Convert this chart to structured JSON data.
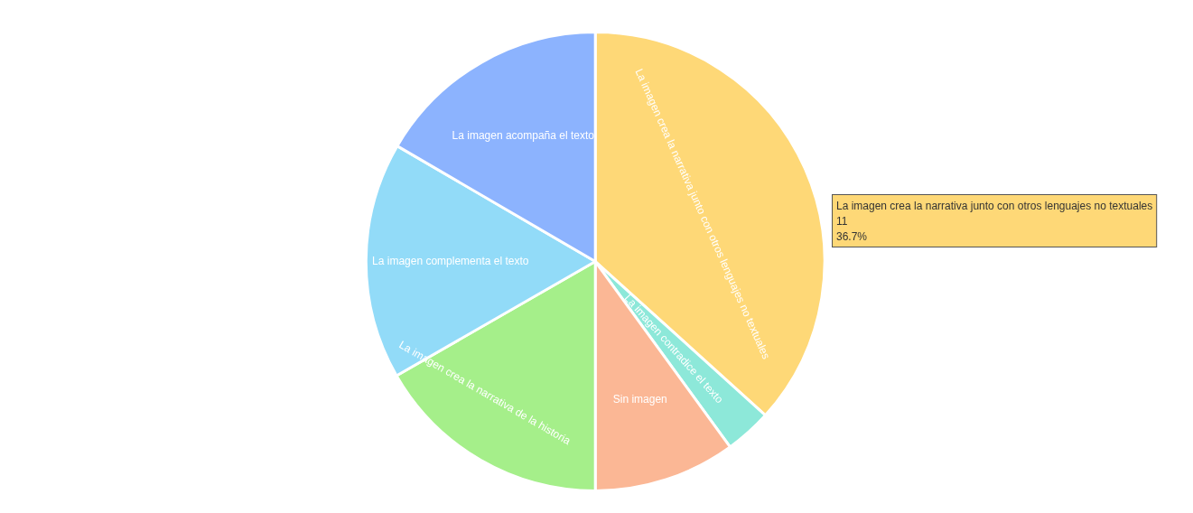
{
  "chart_data": {
    "type": "pie",
    "categories": [
      "La imagen crea la narrativa junto con otros lenguajes no textuales",
      "La imagen contradice el texto",
      "Sin imagen",
      "La imagen crea la narrativa de la historia",
      "La imagen complementa el texto",
      "La imagen acompaña el texto"
    ],
    "values": [
      36.7,
      3.3,
      10,
      16.7,
      16.7,
      16.6
    ],
    "colors": [
      "#fed877",
      "#8de8d9",
      "#fbb795",
      "#a5ef8a",
      "#92dbf8",
      "#8cb3fe"
    ],
    "legend": false,
    "annotations": [
      "La imagen crea la narrativa junto con otros lenguajes no textuales\n11\n36.7%"
    ]
  }
}
